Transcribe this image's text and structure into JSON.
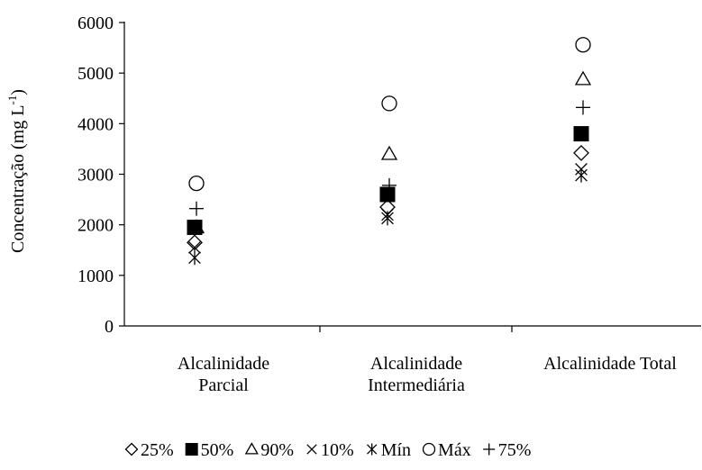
{
  "chart_data": {
    "type": "scatter",
    "title": "",
    "xlabel": "",
    "ylabel": "Concentração (mg L",
    "ylabel_sup": "-1",
    "ylabel_end": ")",
    "ylim": [
      0,
      6000
    ],
    "yticks": [
      0,
      1000,
      2000,
      3000,
      4000,
      5000,
      6000
    ],
    "grid": false,
    "legend_position": "bottom",
    "categories": [
      [
        "Alcalinidade",
        "Parcial"
      ],
      [
        "Alcalinidade",
        "Intermediária"
      ],
      [
        "Alcalinidade Total"
      ]
    ],
    "series": [
      {
        "name": "25%",
        "marker": "diamond",
        "values": [
          1650,
          2350,
          3420
        ]
      },
      {
        "name": "50%",
        "marker": "square-filled",
        "values": [
          1950,
          2600,
          3800
        ]
      },
      {
        "name": "90%",
        "marker": "triangle",
        "values": [
          1950,
          3400,
          4880
        ]
      },
      {
        "name": "10%",
        "marker": "x",
        "values": [
          1550,
          2200,
          3100
        ]
      },
      {
        "name": "Mín",
        "marker": "asterisk",
        "values": [
          1350,
          2130,
          2980
        ]
      },
      {
        "name": "Máx",
        "marker": "circle",
        "values": [
          2820,
          4400,
          5560
        ]
      },
      {
        "name": "75%",
        "marker": "plus",
        "values": [
          2320,
          2780,
          4320
        ]
      }
    ]
  }
}
